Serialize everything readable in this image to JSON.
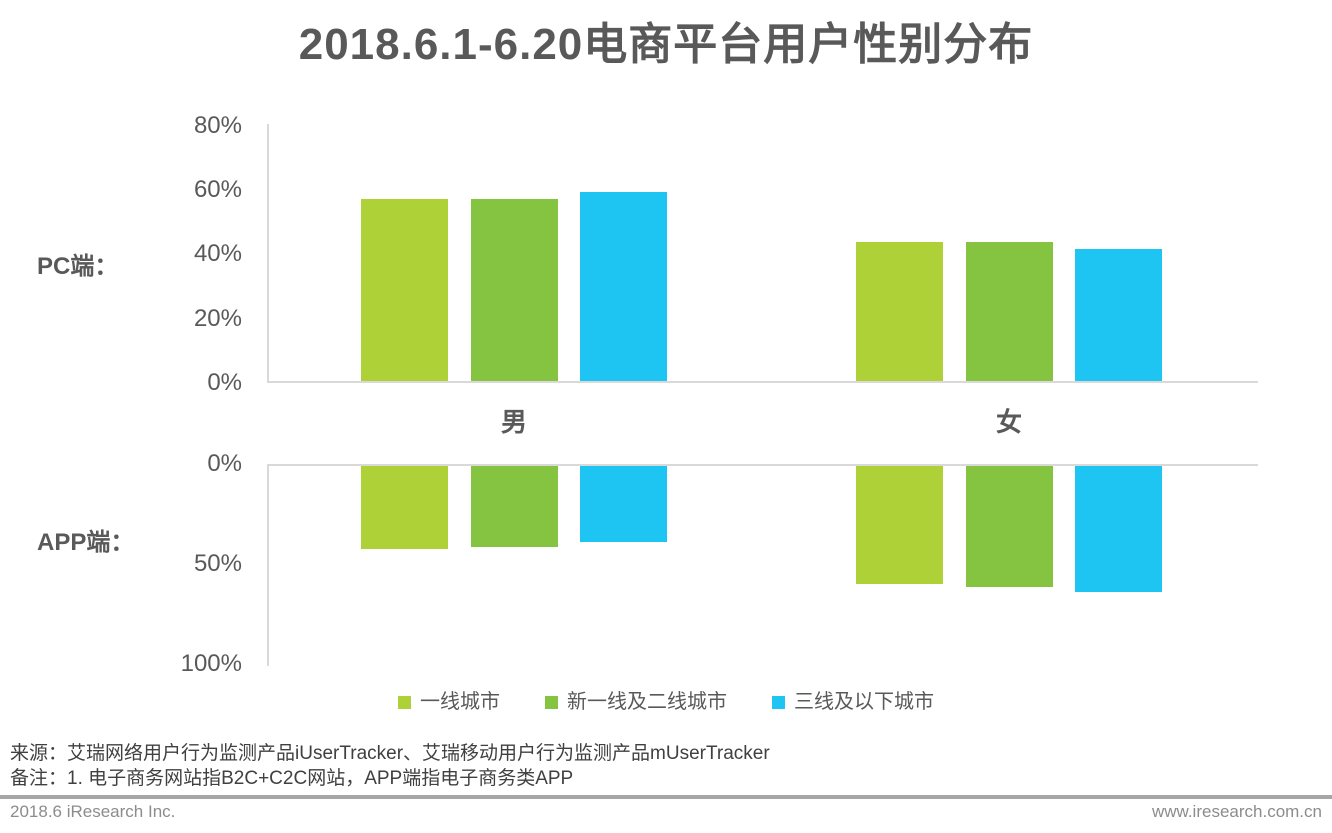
{
  "page": {
    "title": "2018.6.1-6.20电商平台用户性别分布"
  },
  "chart_data": [
    {
      "id": "pc",
      "type": "bar",
      "panel_label": "PC端：",
      "categories": [
        "男",
        "女"
      ],
      "series": [
        {
          "name": "一线城市",
          "color": "#AFD138",
          "values": [
            56.7,
            43.3
          ]
        },
        {
          "name": "新一线及二线城市",
          "color": "#85C440",
          "values": [
            56.7,
            43.3
          ]
        },
        {
          "name": "三线及以下城市",
          "color": "#1EC4F2",
          "values": [
            58.9,
            41.1
          ]
        }
      ],
      "ylabel_ticks": [
        "80%",
        "60%",
        "40%",
        "20%",
        "0%"
      ],
      "ylim": [
        0,
        80
      ],
      "axis_orientation": "bottom",
      "grid": false,
      "legend_position": "bottom-shared"
    },
    {
      "id": "app",
      "type": "bar",
      "panel_label": "APP端：",
      "categories": [
        "男",
        "女"
      ],
      "series": [
        {
          "name": "一线城市",
          "color": "#AFD138",
          "values": [
            41.5,
            59.0
          ]
        },
        {
          "name": "新一线及二线城市",
          "color": "#85C440",
          "values": [
            40.5,
            60.5
          ]
        },
        {
          "name": "三线及以下城市",
          "color": "#1EC4F2",
          "values": [
            38.0,
            63.0
          ]
        }
      ],
      "ylabel_ticks": [
        "0%",
        "50%",
        "100%"
      ],
      "ylim": [
        0,
        100
      ],
      "axis_orientation": "top",
      "grid": false,
      "legend_position": "bottom-shared"
    }
  ],
  "notes": {
    "source": "来源：艾瑞网络用户行为监测产品iUserTracker、艾瑞移动用户行为监测产品mUserTracker",
    "remark": "备注：1. 电子商务网站指B2C+C2C网站，APP端指电子商务类APP"
  },
  "footer": {
    "left": "2018.6 iResearch Inc.",
    "right": "www.iresearch.com.cn"
  },
  "colors": {
    "series": [
      "#AFD138",
      "#85C440",
      "#1EC4F2"
    ],
    "text_dark": "#595959",
    "axis_line": "#D9D9D9",
    "note_text": "#404040",
    "footer_text": "#8C8C8C",
    "footer_line": "#A6A6A6"
  }
}
